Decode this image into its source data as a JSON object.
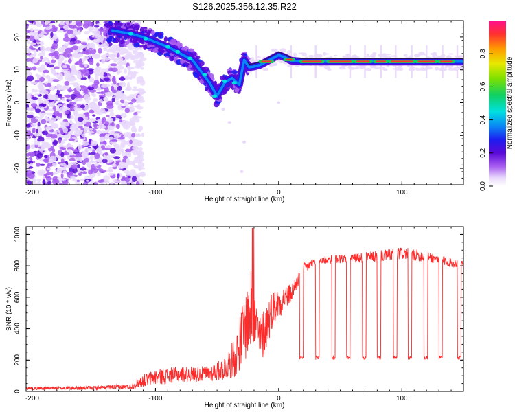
{
  "title": "S126.2025.356.12.35.R22",
  "chart_data": [
    {
      "type": "heatmap",
      "xlabel": "Height of straight line (km)",
      "ylabel": "Frequency (Hz)",
      "xlim": [
        -205,
        150
      ],
      "ylim": [
        -25,
        25
      ],
      "xticks": [
        -200,
        -100,
        0,
        100
      ],
      "yticks": [
        -20,
        -10,
        0,
        10,
        20
      ],
      "colorbar": {
        "label": "Normalized spectral amplitude",
        "range": [
          0,
          1
        ],
        "ticks": [
          0.0,
          0.2,
          0.4,
          0.6,
          0.8
        ]
      },
      "ridge": {
        "x": [
          -135,
          -120,
          -110,
          -100,
          -90,
          -80,
          -70,
          -62,
          -56,
          -50,
          -44,
          -38,
          -32,
          -28,
          -24,
          -20,
          -15,
          -10,
          -5,
          0,
          5,
          10,
          20,
          40,
          60,
          80,
          100,
          120,
          150
        ],
        "y": [
          22,
          21,
          20,
          18.5,
          17,
          15,
          13,
          9,
          6,
          2,
          6,
          7.5,
          5.5,
          13,
          10.8,
          11,
          11.5,
          12.5,
          13.5,
          14.5,
          13.8,
          12.8,
          12.5,
          12.5,
          12.5,
          12.5,
          12.5,
          12.5,
          12.5
        ]
      }
    },
    {
      "type": "line",
      "xlabel": "Height of straight line (km)",
      "ylabel": "SNR (10 * v/v)",
      "xlim": [
        -205,
        150
      ],
      "ylim": [
        0,
        1050
      ],
      "xticks": [
        -200,
        -100,
        0,
        100
      ],
      "yticks": [
        0,
        200,
        400,
        600,
        800,
        1000
      ],
      "series": [
        {
          "name": "SNR",
          "color": "#ff2a2a",
          "x": [
            -205,
            -150,
            -120,
            -110,
            -100,
            -80,
            -60,
            -45,
            -35,
            -28,
            -22,
            -20,
            -15,
            -10,
            -5,
            0,
            5,
            10,
            15,
            20,
            30,
            40,
            60,
            80,
            100,
            120,
            140,
            150
          ],
          "y_mean": [
            20,
            22,
            30,
            70,
            90,
            110,
            110,
            140,
            220,
            400,
            520,
            470,
            320,
            420,
            530,
            560,
            600,
            620,
            700,
            780,
            830,
            840,
            850,
            860,
            880,
            860,
            820,
            810
          ],
          "y_spread": [
            10,
            12,
            18,
            40,
            50,
            50,
            50,
            70,
            130,
            220,
            260,
            200,
            160,
            160,
            120,
            100,
            80,
            60,
            50,
            40,
            30,
            30,
            30,
            35,
            40,
            35,
            30,
            30
          ]
        }
      ],
      "dropouts": {
        "x_start": [
          17,
          30,
          43,
          55,
          68,
          80,
          93,
          105,
          118,
          130,
          145
        ],
        "x_end": [
          20,
          33,
          46,
          58,
          71,
          83,
          96,
          108,
          121,
          133,
          148
        ],
        "level": 215
      }
    }
  ]
}
